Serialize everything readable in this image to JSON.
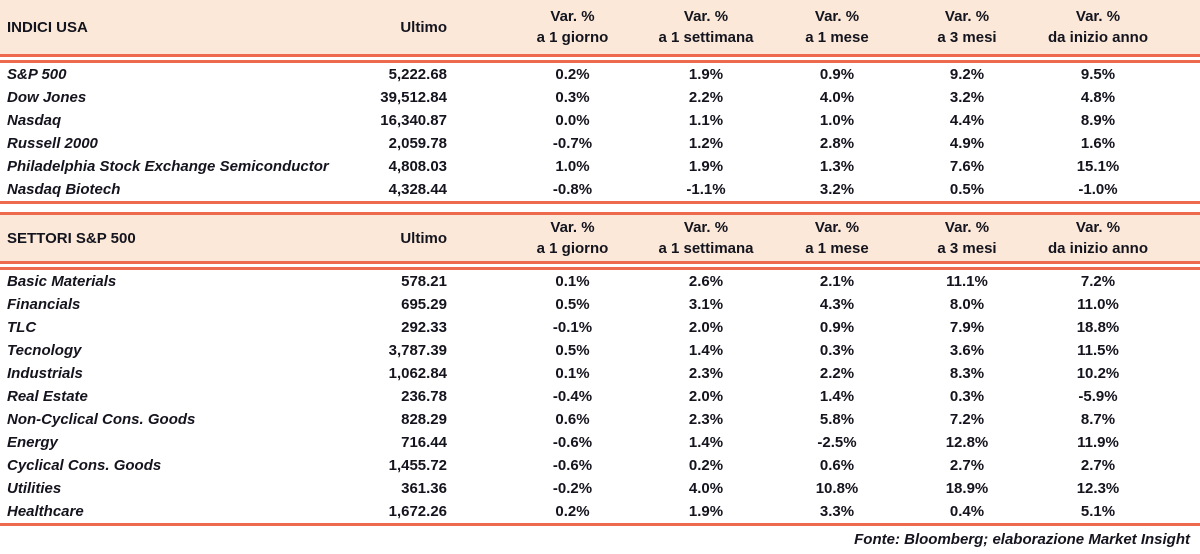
{
  "colors": {
    "header_bg": "#fbe8d8",
    "rule_line": "#ed6a4f",
    "text": "#14141e"
  },
  "columns": {
    "ultimo": "Ultimo",
    "var_label": "Var. %",
    "periods": [
      "a 1 giorno",
      "a 1 settimana",
      "a 1 mese",
      "a 3 mesi",
      "da inizio anno"
    ]
  },
  "sections": [
    {
      "title": "INDICI USA",
      "rows": [
        {
          "name": "S&P 500",
          "ultimo": "5,222.68",
          "vars": [
            "0.2%",
            "1.9%",
            "0.9%",
            "9.2%",
            "9.5%"
          ]
        },
        {
          "name": "Dow Jones",
          "ultimo": "39,512.84",
          "vars": [
            "0.3%",
            "2.2%",
            "4.0%",
            "3.2%",
            "4.8%"
          ]
        },
        {
          "name": "Nasdaq",
          "ultimo": "16,340.87",
          "vars": [
            "0.0%",
            "1.1%",
            "1.0%",
            "4.4%",
            "8.9%"
          ]
        },
        {
          "name": "Russell 2000",
          "ultimo": "2,059.78",
          "vars": [
            "-0.7%",
            "1.2%",
            "2.8%",
            "4.9%",
            "1.6%"
          ]
        },
        {
          "name": "Philadelphia Stock Exchange Semiconductor",
          "ultimo": "4,808.03",
          "vars": [
            "1.0%",
            "1.9%",
            "1.3%",
            "7.6%",
            "15.1%"
          ]
        },
        {
          "name": "Nasdaq Biotech",
          "ultimo": "4,328.44",
          "vars": [
            "-0.8%",
            "-1.1%",
            "3.2%",
            "0.5%",
            "-1.0%"
          ]
        }
      ]
    },
    {
      "title": "SETTORI S&P 500",
      "rows": [
        {
          "name": "Basic Materials",
          "ultimo": "578.21",
          "vars": [
            "0.1%",
            "2.6%",
            "2.1%",
            "11.1%",
            "7.2%"
          ]
        },
        {
          "name": "Financials",
          "ultimo": "695.29",
          "vars": [
            "0.5%",
            "3.1%",
            "4.3%",
            "8.0%",
            "11.0%"
          ]
        },
        {
          "name": "TLC",
          "ultimo": "292.33",
          "vars": [
            "-0.1%",
            "2.0%",
            "0.9%",
            "7.9%",
            "18.8%"
          ]
        },
        {
          "name": "Tecnology",
          "ultimo": "3,787.39",
          "vars": [
            "0.5%",
            "1.4%",
            "0.3%",
            "3.6%",
            "11.5%"
          ]
        },
        {
          "name": "Industrials",
          "ultimo": "1,062.84",
          "vars": [
            "0.1%",
            "2.3%",
            "2.2%",
            "8.3%",
            "10.2%"
          ]
        },
        {
          "name": "Real Estate",
          "ultimo": "236.78",
          "vars": [
            "-0.4%",
            "2.0%",
            "1.4%",
            "0.3%",
            "-5.9%"
          ]
        },
        {
          "name": "Non-Cyclical Cons. Goods",
          "ultimo": "828.29",
          "vars": [
            "0.6%",
            "2.3%",
            "5.8%",
            "7.2%",
            "8.7%"
          ]
        },
        {
          "name": "Energy",
          "ultimo": "716.44",
          "vars": [
            "-0.6%",
            "1.4%",
            "-2.5%",
            "12.8%",
            "11.9%"
          ]
        },
        {
          "name": "Cyclical Cons. Goods",
          "ultimo": "1,455.72",
          "vars": [
            "-0.6%",
            "0.2%",
            "0.6%",
            "2.7%",
            "2.7%"
          ]
        },
        {
          "name": "Utilities",
          "ultimo": "361.36",
          "vars": [
            "-0.2%",
            "4.0%",
            "10.8%",
            "18.9%",
            "12.3%"
          ]
        },
        {
          "name": "Healthcare",
          "ultimo": "1,672.26",
          "vars": [
            "0.2%",
            "1.9%",
            "3.3%",
            "0.4%",
            "5.1%"
          ]
        }
      ]
    }
  ],
  "footer": "Fonte: Bloomberg; elaborazione Market Insight",
  "chart_data": [
    {
      "type": "table",
      "title": "INDICI USA",
      "columns": [
        "Ultimo",
        "Var. % a 1 giorno",
        "Var. % a 1 settimana",
        "Var. % a 1 mese",
        "Var. % a 3 mesi",
        "Var. % da inizio anno"
      ],
      "rows": [
        [
          "S&P 500",
          5222.68,
          0.2,
          1.9,
          0.9,
          9.2,
          9.5
        ],
        [
          "Dow Jones",
          39512.84,
          0.3,
          2.2,
          4.0,
          3.2,
          4.8
        ],
        [
          "Nasdaq",
          16340.87,
          0.0,
          1.1,
          1.0,
          4.4,
          8.9
        ],
        [
          "Russell 2000",
          2059.78,
          -0.7,
          1.2,
          2.8,
          4.9,
          1.6
        ],
        [
          "Philadelphia Stock Exchange Semiconductor",
          4808.03,
          1.0,
          1.9,
          1.3,
          7.6,
          15.1
        ],
        [
          "Nasdaq Biotech",
          4328.44,
          -0.8,
          -1.1,
          3.2,
          0.5,
          -1.0
        ]
      ]
    },
    {
      "type": "table",
      "title": "SETTORI S&P 500",
      "columns": [
        "Ultimo",
        "Var. % a 1 giorno",
        "Var. % a 1 settimana",
        "Var. % a 1 mese",
        "Var. % a 3 mesi",
        "Var. % da inizio anno"
      ],
      "rows": [
        [
          "Basic Materials",
          578.21,
          0.1,
          2.6,
          2.1,
          11.1,
          7.2
        ],
        [
          "Financials",
          695.29,
          0.5,
          3.1,
          4.3,
          8.0,
          11.0
        ],
        [
          "TLC",
          292.33,
          -0.1,
          2.0,
          0.9,
          7.9,
          18.8
        ],
        [
          "Tecnology",
          3787.39,
          0.5,
          1.4,
          0.3,
          3.6,
          11.5
        ],
        [
          "Industrials",
          1062.84,
          0.1,
          2.3,
          2.2,
          8.3,
          10.2
        ],
        [
          "Real Estate",
          236.78,
          -0.4,
          2.0,
          1.4,
          0.3,
          -5.9
        ],
        [
          "Non-Cyclical Cons. Goods",
          828.29,
          0.6,
          2.3,
          5.8,
          7.2,
          8.7
        ],
        [
          "Energy",
          716.44,
          -0.6,
          1.4,
          -2.5,
          12.8,
          11.9
        ],
        [
          "Cyclical Cons. Goods",
          1455.72,
          -0.6,
          0.2,
          0.6,
          2.7,
          2.7
        ],
        [
          "Utilities",
          361.36,
          -0.2,
          4.0,
          10.8,
          18.9,
          12.3
        ],
        [
          "Healthcare",
          1672.26,
          0.2,
          1.9,
          3.3,
          0.4,
          5.1
        ]
      ]
    }
  ]
}
